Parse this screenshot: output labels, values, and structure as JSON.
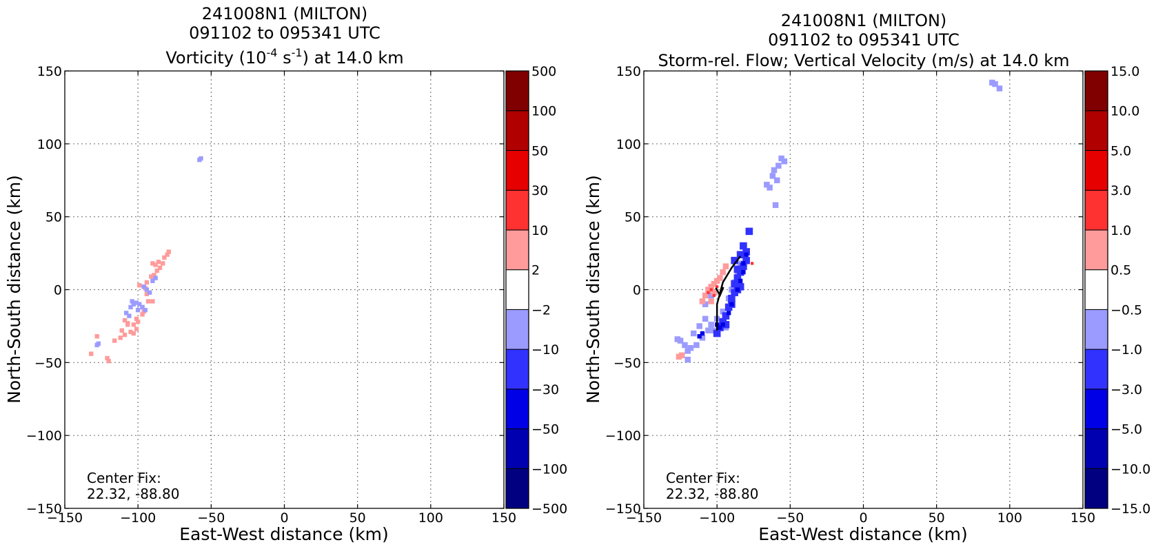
{
  "chart_data": [
    {
      "type": "heatmap",
      "title_lines": [
        "241008N1 (MILTON)",
        "091102 to 095341 UTC"
      ],
      "title_var": {
        "pre": "Vorticity (10",
        "sup1": "-4",
        "mid": " s",
        "sup2": "-1",
        "post": ") at 14.0 km"
      },
      "xlabel": "East-West distance (km)",
      "ylabel": "North-South distance (km)",
      "xlim": [
        -150,
        150
      ],
      "ylim": [
        -150,
        150
      ],
      "xticks": [
        -150,
        -100,
        -50,
        0,
        50,
        100,
        150
      ],
      "yticks": [
        -150,
        -100,
        -50,
        0,
        50,
        100,
        150
      ],
      "xtick_labels": [
        "−150",
        "−100",
        "−50",
        "0",
        "50",
        "100",
        "150"
      ],
      "ytick_labels": [
        "−150",
        "−100",
        "−50",
        "0",
        "50",
        "100",
        "150"
      ],
      "grid": true,
      "annotation": [
        "Center Fix:",
        "22.32, -88.80"
      ],
      "colorbar": {
        "tick_labels": [
          "−500",
          "−100",
          "−50",
          "−30",
          "−10",
          "−2",
          "2",
          "10",
          "30",
          "50",
          "100",
          "500"
        ],
        "colors": [
          "#000080",
          "#0000b0",
          "#0000e6",
          "#3232ff",
          "#9b9bff",
          "#ffffff",
          "#ff9b9b",
          "#ff3232",
          "#e60000",
          "#b00000",
          "#800000"
        ]
      },
      "features": [
        {
          "level": "2 to 10",
          "color": "#ff9b9b",
          "points": [
            [
              -116,
              -35
            ],
            [
              -112,
              -33
            ],
            [
              -109,
              -31
            ],
            [
              -111,
              -28
            ],
            [
              -107,
              -24
            ],
            [
              -103,
              -24
            ],
            [
              -101,
              -27
            ],
            [
              -103,
              -30
            ],
            [
              -105,
              -29
            ],
            [
              -100,
              -22
            ],
            [
              -97,
              -17
            ],
            [
              -96,
              -15
            ],
            [
              -93,
              -8
            ],
            [
              -90,
              -8
            ],
            [
              -94,
              -3
            ],
            [
              -96,
              2
            ],
            [
              -94,
              5
            ],
            [
              -91,
              9
            ],
            [
              -89,
              10
            ],
            [
              -87,
              13
            ],
            [
              -85,
              15
            ],
            [
              -83,
              18
            ],
            [
              -82,
              22
            ],
            [
              -80,
              24
            ],
            [
              -79,
              26
            ],
            [
              -90,
              18
            ],
            [
              -88,
              17
            ],
            [
              -86,
              19
            ],
            [
              -95,
              1
            ],
            [
              -99,
              3
            ],
            [
              -121,
              -47
            ],
            [
              -120,
              -49
            ],
            [
              -132,
              -44
            ],
            [
              -128,
              -32
            ],
            [
              -107,
              -23
            ],
            [
              -109,
              -21
            ],
            [
              -97,
              -12
            ],
            [
              -101,
              -20
            ]
          ],
          "size": 3
        },
        {
          "level": "-10 to -2",
          "color": "#9b9bff",
          "points": [
            [
              -105,
              -12
            ],
            [
              -103,
              -10
            ],
            [
              -101,
              -9
            ],
            [
              -99,
              -10
            ],
            [
              -97,
              -12
            ],
            [
              -95,
              -14
            ],
            [
              -100,
              -14
            ],
            [
              -104,
              -8
            ],
            [
              -108,
              -16
            ],
            [
              -106,
              -18
            ],
            [
              -92,
              -2
            ],
            [
              -94,
              0
            ],
            [
              -96,
              2
            ],
            [
              -90,
              6
            ],
            [
              -88,
              8
            ],
            [
              -128,
              -38
            ],
            [
              -127,
              -37
            ],
            [
              -58,
              89
            ],
            [
              -57,
              90
            ]
          ],
          "size": 3
        }
      ]
    },
    {
      "type": "heatmap",
      "title_lines": [
        "241008N1 (MILTON)",
        "091102 to 095341 UTC",
        "Storm-rel. Flow; Vertical Velocity (m/s) at 14.0 km"
      ],
      "xlabel": "East-West distance (km)",
      "ylabel": "North-South distance (km)",
      "xlim": [
        -150,
        150
      ],
      "ylim": [
        -150,
        150
      ],
      "xticks": [
        -150,
        -100,
        -50,
        0,
        50,
        100,
        150
      ],
      "yticks": [
        -150,
        -100,
        -50,
        0,
        50,
        100,
        150
      ],
      "xtick_labels": [
        "−150",
        "−100",
        "−50",
        "0",
        "50",
        "100",
        "150"
      ],
      "ytick_labels": [
        "−150",
        "−100",
        "−50",
        "0",
        "50",
        "100",
        "150"
      ],
      "grid": true,
      "annotation": [
        "Center Fix:",
        "22.32, -88.80"
      ],
      "colorbar": {
        "tick_labels": [
          "−15.0",
          "−10.0",
          "−5.0",
          "−3.0",
          "−1.0",
          "−0.5",
          "0.5",
          "1.0",
          "3.0",
          "5.0",
          "10.0",
          "15.0"
        ],
        "colors": [
          "#000080",
          "#0000b0",
          "#0000e6",
          "#3232ff",
          "#9b9bff",
          "#ffffff",
          "#ff9b9b",
          "#ff3232",
          "#e60000",
          "#b00000",
          "#800000"
        ]
      },
      "features": [
        {
          "level": "-1.0 to -0.5",
          "color": "#9b9bff",
          "points": [
            [
              -125,
              -35
            ],
            [
              -122,
              -38
            ],
            [
              -118,
              -40
            ],
            [
              -114,
              -38
            ],
            [
              -110,
              -33
            ],
            [
              -106,
              -28
            ],
            [
              -104,
              -24
            ],
            [
              -108,
              -20
            ],
            [
              -112,
              -25
            ],
            [
              -116,
              -30
            ],
            [
              -120,
              -42
            ],
            [
              -100,
              -20
            ],
            [
              -96,
              -15
            ],
            [
              -92,
              -6
            ],
            [
              -90,
              0
            ],
            [
              -88,
              5
            ],
            [
              -86,
              12
            ],
            [
              -84,
              18
            ],
            [
              -96,
              -22
            ],
            [
              -102,
              -28
            ],
            [
              -94,
              -26
            ],
            [
              -60,
              58
            ],
            [
              -64,
              70
            ],
            [
              -62,
              78
            ],
            [
              -58,
              85
            ],
            [
              -56,
              90
            ],
            [
              -54,
              88
            ],
            [
              -61,
              82
            ],
            [
              -59,
              75
            ],
            [
              -66,
              72
            ],
            [
              -120,
              -48
            ],
            [
              -127,
              -34
            ],
            [
              88,
              142
            ],
            [
              90,
              141
            ],
            [
              93,
              138
            ],
            [
              -108,
              -10
            ],
            [
              -104,
              -4
            ]
          ],
          "size": 4
        },
        {
          "level": "-3.0 to -1.0",
          "color": "#3232ff",
          "points": [
            [
              -96,
              -22
            ],
            [
              -94,
              -18
            ],
            [
              -92,
              -12
            ],
            [
              -90,
              -6
            ],
            [
              -88,
              -2
            ],
            [
              -88,
              4
            ],
            [
              -86,
              8
            ],
            [
              -84,
              12
            ],
            [
              -82,
              16
            ],
            [
              -80,
              20
            ],
            [
              -80,
              26
            ],
            [
              -82,
              30
            ],
            [
              -78,
              40
            ],
            [
              -86,
              14
            ],
            [
              -84,
              2
            ],
            [
              -90,
              -10
            ],
            [
              -94,
              -24
            ],
            [
              -98,
              -26
            ],
            [
              -100,
              -30
            ],
            [
              -84,
              24
            ],
            [
              -88,
              20
            ],
            [
              -86,
              0
            ]
          ],
          "size": 5
        },
        {
          "level": "-5.0 to -3.0",
          "color": "#0000e6",
          "points": [
            [
              -98,
              -26
            ],
            [
              -96,
              -24
            ],
            [
              -92,
              -16
            ],
            [
              -90,
              -10
            ],
            [
              -86,
              0
            ],
            [
              -84,
              6
            ],
            [
              -82,
              12
            ],
            [
              -82,
              18
            ],
            [
              -80,
              24
            ],
            [
              -112,
              -32
            ],
            [
              -110,
              -30
            ],
            [
              -100,
              -24
            ]
          ],
          "size": 3
        },
        {
          "level": "0.5 to 1.0",
          "color": "#ff9b9b",
          "points": [
            [
              -108,
              -4
            ],
            [
              -106,
              0
            ],
            [
              -104,
              2
            ],
            [
              -102,
              4
            ],
            [
              -100,
              6
            ],
            [
              -98,
              8
            ],
            [
              -104,
              -8
            ],
            [
              -110,
              -8
            ],
            [
              -126,
              -46
            ],
            [
              -124,
              -45
            ],
            [
              -102,
              -2
            ],
            [
              -96,
              12
            ],
            [
              -94,
              16
            ]
          ],
          "size": 4
        },
        {
          "level": "1.0 to 3.0",
          "color": "#ff3232",
          "points": [
            [
              -106,
              -2
            ],
            [
              -104,
              0
            ],
            [
              -102,
              -4
            ],
            [
              -76,
              18
            ],
            [
              -100,
              2
            ]
          ],
          "size": 2
        }
      ],
      "flow_arrow": {
        "points": [
          [
            -100,
            -28
          ],
          [
            -100,
            -10
          ],
          [
            -96,
            5
          ],
          [
            -90,
            15
          ],
          [
            -84,
            23
          ]
        ],
        "arrow_tip": [
          -98,
          -3
        ]
      }
    }
  ]
}
